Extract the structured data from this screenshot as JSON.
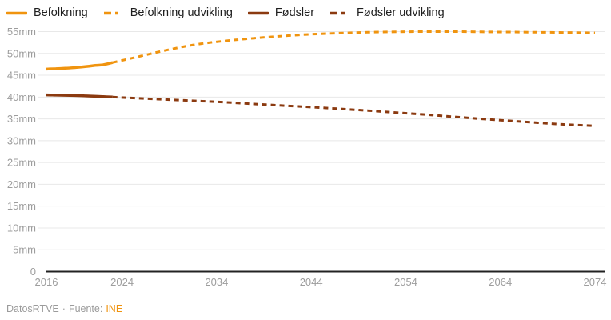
{
  "chart_data": {
    "type": "line",
    "title": "",
    "xlabel": "",
    "ylabel": "",
    "xlim": [
      2016,
      2074
    ],
    "ylim": [
      0,
      55
    ],
    "grid": true,
    "legend_position": "top-left",
    "x_ticks": [
      2016,
      2024,
      2034,
      2044,
      2054,
      2064,
      2074
    ],
    "x_tick_labels": [
      "2016",
      "2024",
      "2034",
      "2044",
      "2054",
      "2064",
      "2074"
    ],
    "y_ticks": [
      0,
      5,
      10,
      15,
      20,
      25,
      30,
      35,
      40,
      45,
      50,
      55
    ],
    "y_tick_labels": [
      "0",
      "5mm",
      "10mm",
      "15mm",
      "20mm",
      "25mm",
      "30mm",
      "35mm",
      "40mm",
      "45mm",
      "50mm",
      "55mm"
    ],
    "colors": {
      "befolkning": "#f0940f",
      "foedsler": "#8b3a10",
      "gridline": "#e8e8e8",
      "axis_line": "#222222",
      "tick_label": "#9d9d9d"
    },
    "series": [
      {
        "name": "Befolkning",
        "color": "#f0940f",
        "style": "solid",
        "x": [
          2016,
          2017,
          2018,
          2019,
          2020,
          2021,
          2022,
          2023
        ],
        "values": [
          46.4,
          46.5,
          46.6,
          46.75,
          46.95,
          47.2,
          47.4,
          47.9
        ]
      },
      {
        "name": "Befolkning udvikling",
        "color": "#f0940f",
        "style": "dashed",
        "x": [
          2023,
          2026,
          2029,
          2032,
          2035,
          2038,
          2041,
          2044,
          2047,
          2050,
          2053,
          2056,
          2059,
          2062,
          2065,
          2068,
          2071,
          2074
        ],
        "values": [
          47.9,
          49.4,
          50.9,
          52.1,
          52.9,
          53.5,
          54.0,
          54.4,
          54.65,
          54.85,
          54.95,
          55.0,
          55.0,
          54.95,
          54.9,
          54.85,
          54.8,
          54.7
        ]
      },
      {
        "name": "Fødsler",
        "color": "#8b3a10",
        "style": "solid",
        "x": [
          2016,
          2017,
          2018,
          2019,
          2020,
          2021,
          2022,
          2023
        ],
        "values": [
          40.5,
          40.45,
          40.4,
          40.35,
          40.3,
          40.2,
          40.1,
          40.0
        ]
      },
      {
        "name": "Fødsler udvikling",
        "color": "#8b3a10",
        "style": "dashed",
        "x": [
          2023,
          2026,
          2029,
          2032,
          2035,
          2038,
          2041,
          2044,
          2047,
          2050,
          2053,
          2056,
          2059,
          2062,
          2065,
          2068,
          2071,
          2074
        ],
        "values": [
          40.0,
          39.7,
          39.4,
          39.1,
          38.8,
          38.4,
          38.05,
          37.7,
          37.3,
          36.9,
          36.45,
          36.0,
          35.5,
          35.0,
          34.55,
          34.1,
          33.7,
          33.4
        ]
      }
    ]
  },
  "footer": {
    "credit": "DatosRTVE",
    "separator": "·",
    "source_label": "Fuente:",
    "source_name": "INE"
  }
}
